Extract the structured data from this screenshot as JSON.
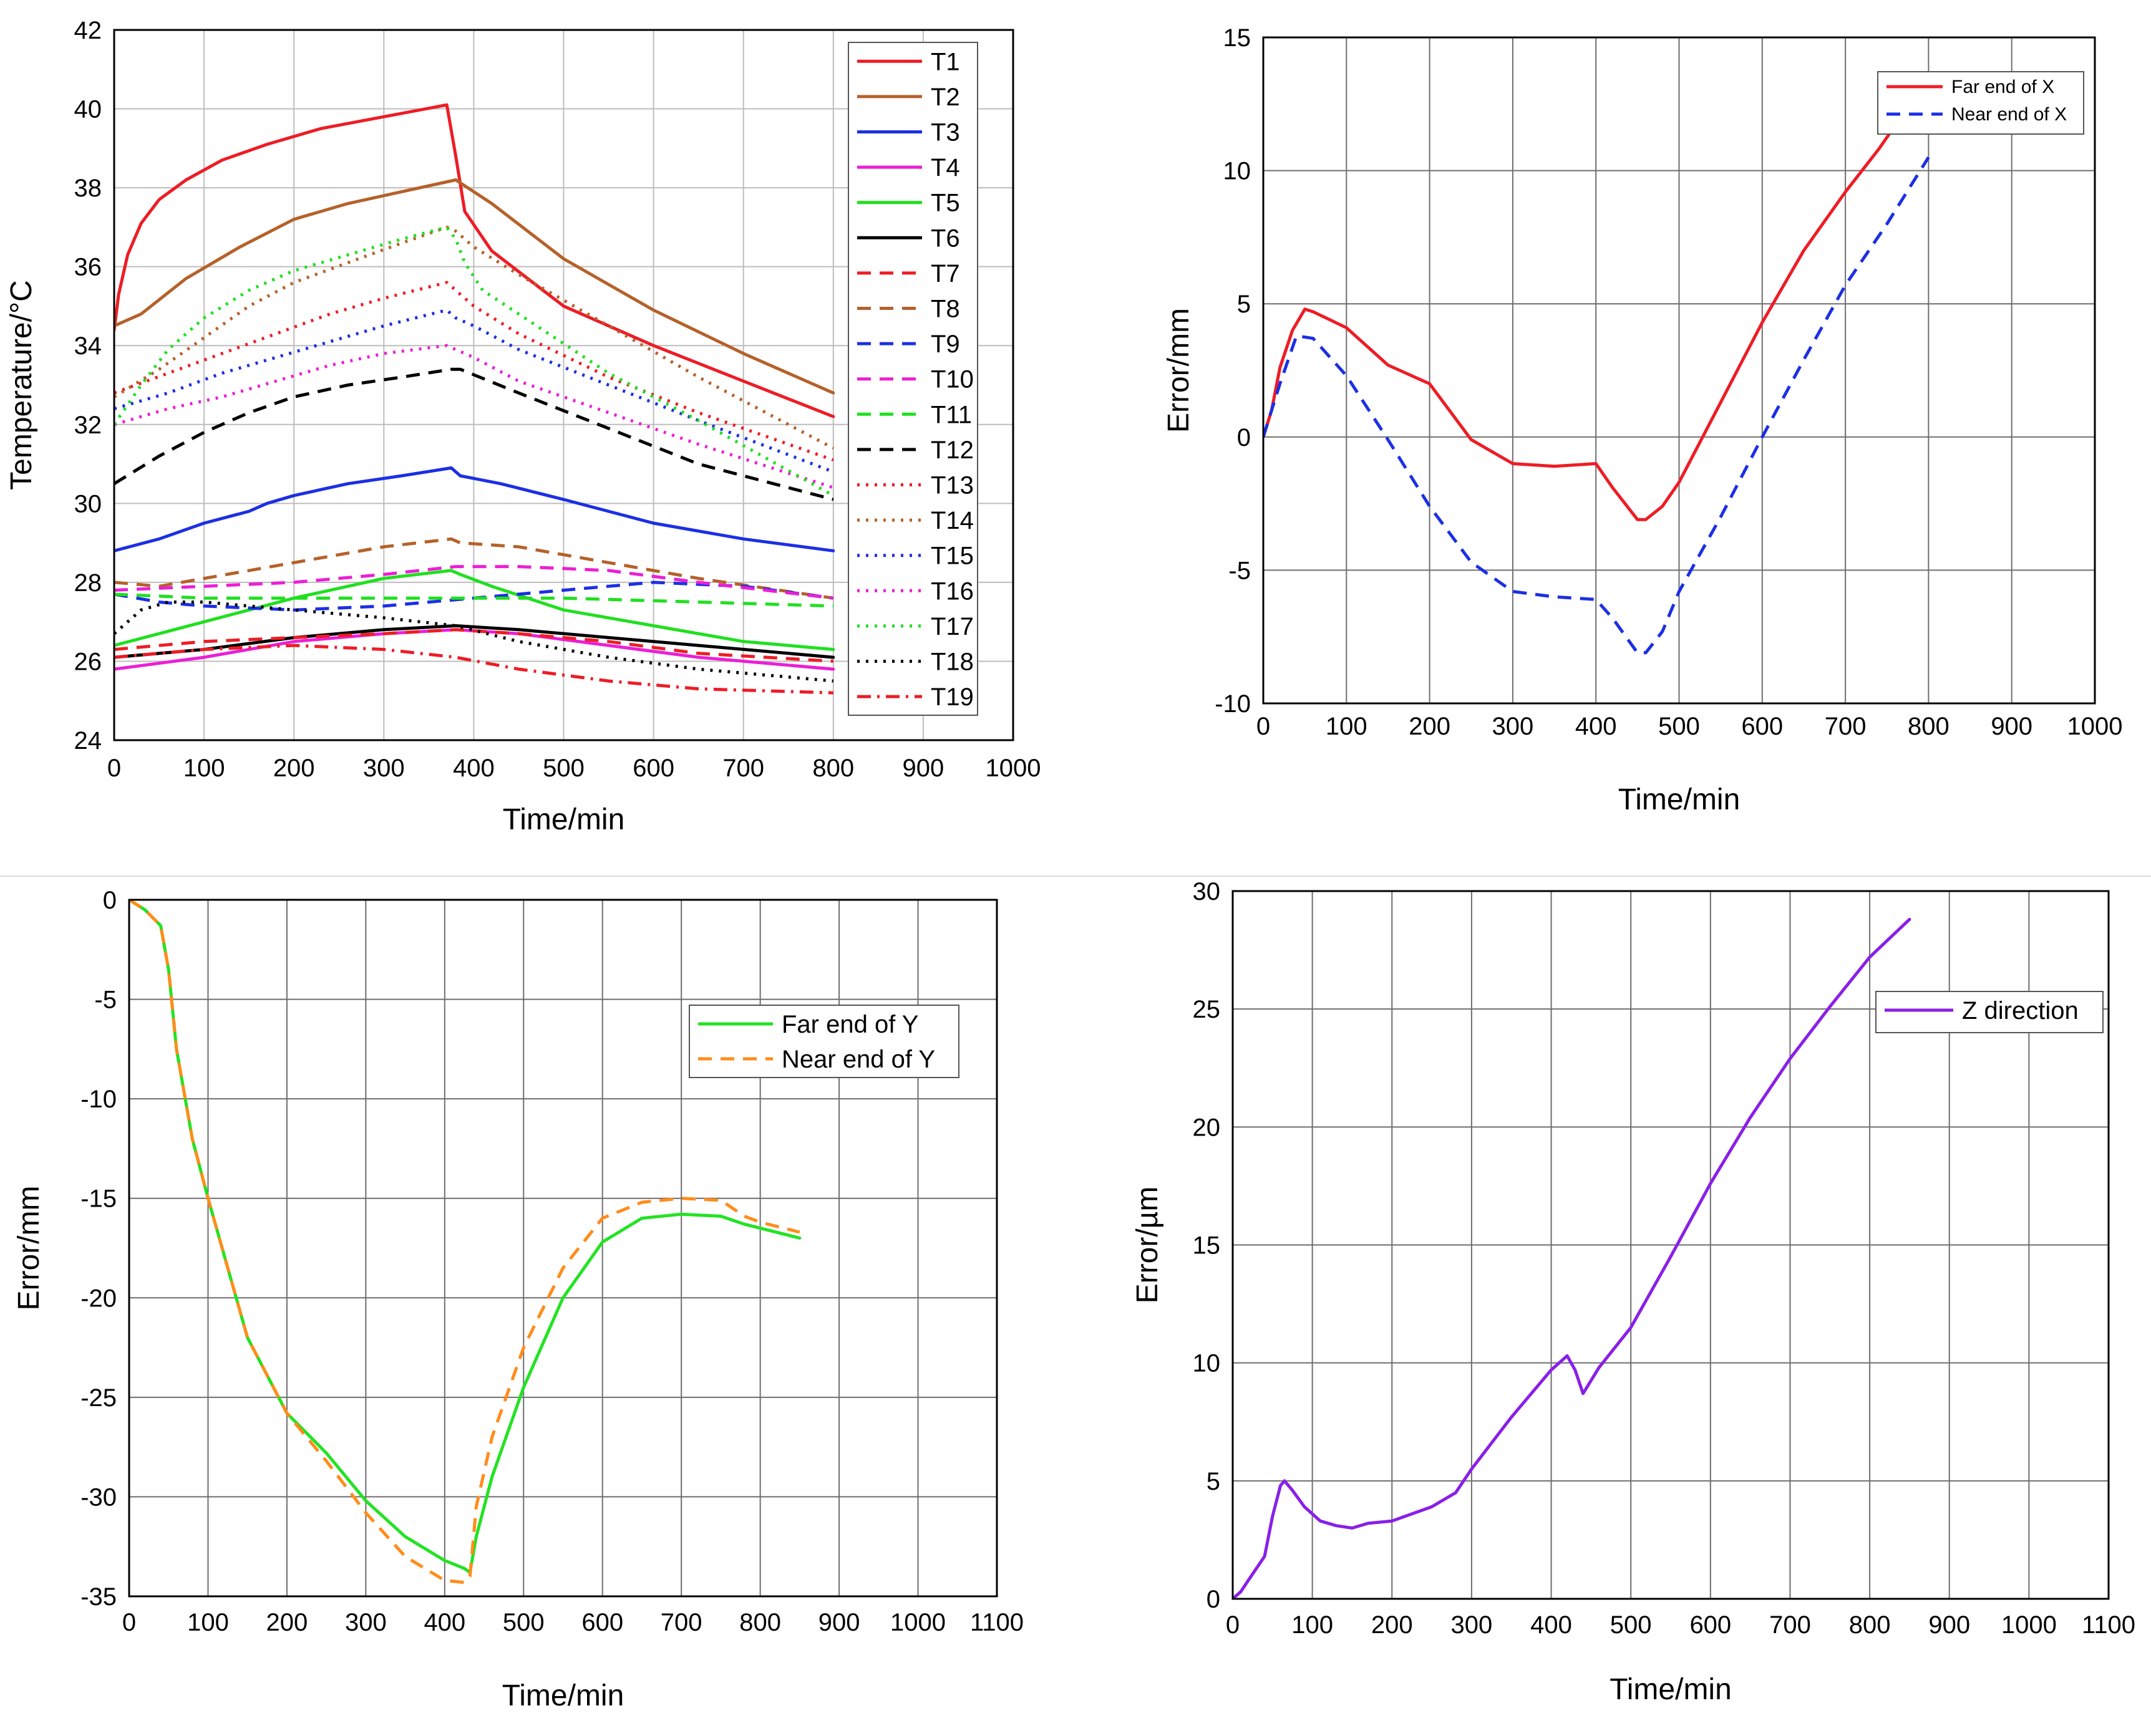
{
  "chart_data": [
    {
      "type": "line",
      "panel": "top-left",
      "xlabel": "Time/min",
      "ylabel": "Temperature/°C",
      "xlim": [
        0,
        1000
      ],
      "ylim": [
        24,
        42
      ],
      "xticks": [
        0,
        100,
        200,
        300,
        400,
        500,
        600,
        700,
        800,
        900,
        1000
      ],
      "yticks": [
        24,
        26,
        28,
        30,
        32,
        34,
        36,
        38,
        40,
        42
      ],
      "grid": true,
      "legend_position": "top-right",
      "series": [
        {
          "name": "T1",
          "color": "#ee1c25",
          "dash": "solid",
          "x": [
            0,
            5,
            15,
            30,
            50,
            80,
            120,
            170,
            230,
            300,
            370,
            380,
            390,
            420,
            500,
            600,
            700,
            800
          ],
          "y": [
            34.4,
            35.3,
            36.3,
            37.1,
            37.7,
            38.2,
            38.7,
            39.1,
            39.5,
            39.8,
            40.1,
            38.8,
            37.4,
            36.4,
            35.0,
            34.0,
            33.1,
            32.2
          ]
        },
        {
          "name": "T2",
          "color": "#b5612a",
          "dash": "solid",
          "x": [
            0,
            30,
            80,
            140,
            200,
            260,
            320,
            380,
            420,
            500,
            600,
            700,
            800
          ],
          "y": [
            34.5,
            34.8,
            35.7,
            36.5,
            37.2,
            37.6,
            37.9,
            38.2,
            37.6,
            36.2,
            34.9,
            33.8,
            32.8
          ]
        },
        {
          "name": "T3",
          "color": "#1c2fe5",
          "dash": "solid",
          "x": [
            0,
            50,
            100,
            150,
            170,
            200,
            260,
            320,
            375,
            385,
            430,
            500,
            600,
            700,
            800
          ],
          "y": [
            28.8,
            29.1,
            29.5,
            29.8,
            30.0,
            30.2,
            30.5,
            30.7,
            30.9,
            30.7,
            30.5,
            30.1,
            29.5,
            29.1,
            28.8
          ]
        },
        {
          "name": "T4",
          "color": "#ec1ed6",
          "dash": "solid",
          "x": [
            0,
            100,
            200,
            300,
            380,
            450,
            550,
            650,
            800
          ],
          "y": [
            25.8,
            26.1,
            26.5,
            26.7,
            26.8,
            26.7,
            26.4,
            26.1,
            25.8
          ]
        },
        {
          "name": "T5",
          "color": "#1fe01f",
          "dash": "solid",
          "x": [
            0,
            100,
            200,
            300,
            375,
            385,
            420,
            500,
            600,
            700,
            800
          ],
          "y": [
            26.4,
            27.0,
            27.6,
            28.1,
            28.3,
            28.2,
            27.9,
            27.3,
            26.9,
            26.5,
            26.3
          ]
        },
        {
          "name": "T6",
          "color": "#000000",
          "dash": "solid",
          "x": [
            0,
            100,
            200,
            300,
            380,
            450,
            550,
            650,
            800
          ],
          "y": [
            26.1,
            26.3,
            26.6,
            26.8,
            26.9,
            26.8,
            26.6,
            26.4,
            26.1
          ]
        },
        {
          "name": "T7",
          "color": "#ee1c25",
          "dash": "dash",
          "x": [
            0,
            100,
            200,
            300,
            380,
            450,
            550,
            650,
            800
          ],
          "y": [
            26.3,
            26.5,
            26.6,
            26.7,
            26.8,
            26.7,
            26.5,
            26.2,
            26.0
          ]
        },
        {
          "name": "T8",
          "color": "#b5612a",
          "dash": "dash",
          "x": [
            0,
            50,
            100,
            200,
            300,
            375,
            385,
            450,
            550,
            650,
            800
          ],
          "y": [
            28.0,
            27.9,
            28.1,
            28.5,
            28.9,
            29.1,
            29.0,
            28.9,
            28.5,
            28.1,
            27.6
          ]
        },
        {
          "name": "T9",
          "color": "#1c2fe5",
          "dash": "dash",
          "x": [
            0,
            50,
            100,
            200,
            300,
            400,
            500,
            600,
            700,
            800
          ],
          "y": [
            27.7,
            27.5,
            27.4,
            27.3,
            27.4,
            27.6,
            27.8,
            28.0,
            27.9,
            27.6
          ]
        },
        {
          "name": "T10",
          "color": "#ec1ed6",
          "dash": "dash",
          "x": [
            0,
            100,
            200,
            300,
            380,
            450,
            550,
            650,
            800
          ],
          "y": [
            27.8,
            27.9,
            28.0,
            28.2,
            28.4,
            28.4,
            28.3,
            28.0,
            27.6
          ]
        },
        {
          "name": "T11",
          "color": "#1fe01f",
          "dash": "dash",
          "x": [
            0,
            100,
            200,
            300,
            380,
            500,
            650,
            800
          ],
          "y": [
            27.7,
            27.6,
            27.6,
            27.6,
            27.6,
            27.6,
            27.5,
            27.4
          ]
        },
        {
          "name": "T12",
          "color": "#000000",
          "dash": "dash",
          "x": [
            0,
            50,
            100,
            150,
            200,
            260,
            320,
            375,
            385,
            450,
            550,
            650,
            800
          ],
          "y": [
            30.5,
            31.2,
            31.8,
            32.3,
            32.7,
            33.0,
            33.2,
            33.4,
            33.4,
            32.8,
            31.9,
            31.0,
            30.1
          ]
        },
        {
          "name": "T13",
          "color": "#ee1c25",
          "dash": "dot",
          "x": [
            0,
            60,
            120,
            180,
            240,
            300,
            370,
            380,
            400,
            450,
            550,
            650,
            800
          ],
          "y": [
            32.8,
            33.3,
            33.8,
            34.3,
            34.8,
            35.2,
            35.6,
            35.4,
            35.0,
            34.3,
            33.2,
            32.3,
            31.1
          ]
        },
        {
          "name": "T14",
          "color": "#b5612a",
          "dash": "dot",
          "x": [
            0,
            50,
            100,
            150,
            200,
            260,
            320,
            370,
            380,
            400,
            450,
            550,
            650,
            800
          ],
          "y": [
            32.7,
            33.4,
            34.2,
            35.0,
            35.6,
            36.1,
            36.6,
            37.0,
            36.9,
            36.5,
            35.8,
            34.5,
            33.2,
            31.4
          ]
        },
        {
          "name": "T15",
          "color": "#1c2fe5",
          "dash": "dot",
          "x": [
            0,
            60,
            120,
            180,
            240,
            300,
            370,
            380,
            400,
            450,
            550,
            650,
            800
          ],
          "y": [
            32.4,
            32.8,
            33.3,
            33.7,
            34.1,
            34.5,
            34.9,
            34.7,
            34.5,
            33.9,
            33.0,
            32.1,
            30.8
          ]
        },
        {
          "name": "T16",
          "color": "#ec1ed6",
          "dash": "dot",
          "x": [
            0,
            60,
            120,
            180,
            240,
            300,
            370,
            380,
            400,
            450,
            550,
            650,
            800
          ],
          "y": [
            32.0,
            32.4,
            32.7,
            33.1,
            33.5,
            33.8,
            34.0,
            33.9,
            33.7,
            33.1,
            32.3,
            31.5,
            30.4
          ]
        },
        {
          "name": "T17",
          "color": "#1fe01f",
          "dash": "dot",
          "x": [
            0,
            30,
            60,
            100,
            150,
            200,
            260,
            320,
            370,
            380,
            390,
            410,
            450,
            550,
            650,
            800
          ],
          "y": [
            32.0,
            33.0,
            33.9,
            34.7,
            35.4,
            35.9,
            36.3,
            36.7,
            37.0,
            36.7,
            36.1,
            35.4,
            34.8,
            33.3,
            32.1,
            30.2
          ]
        },
        {
          "name": "T18",
          "color": "#000000",
          "dash": "dot",
          "x": [
            0,
            30,
            60,
            100,
            200,
            300,
            380,
            450,
            550,
            650,
            800
          ],
          "y": [
            26.7,
            27.3,
            27.5,
            27.5,
            27.3,
            27.1,
            26.9,
            26.5,
            26.1,
            25.8,
            25.5
          ]
        },
        {
          "name": "T19",
          "color": "#ee1c25",
          "dash": "dashdot",
          "x": [
            0,
            100,
            200,
            300,
            380,
            450,
            550,
            650,
            800
          ],
          "y": [
            26.1,
            26.3,
            26.4,
            26.3,
            26.1,
            25.8,
            25.5,
            25.3,
            25.2
          ]
        }
      ]
    },
    {
      "type": "line",
      "panel": "top-right",
      "xlabel": "Time/min",
      "ylabel": "Error/mm",
      "xlim": [
        0,
        1000
      ],
      "ylim": [
        -10,
        15
      ],
      "xticks": [
        0,
        100,
        200,
        300,
        400,
        500,
        600,
        700,
        800,
        900,
        1000
      ],
      "yticks": [
        -10,
        -5,
        0,
        5,
        10,
        15
      ],
      "grid": true,
      "legend_position": "top-right",
      "series": [
        {
          "name": "Far end of X",
          "color": "#ee1c25",
          "dash": "solid",
          "x": [
            0,
            10,
            20,
            35,
            50,
            60,
            80,
            100,
            150,
            200,
            250,
            300,
            350,
            400,
            420,
            450,
            460,
            480,
            500,
            550,
            600,
            650,
            700,
            740,
            760
          ],
          "y": [
            0,
            1.0,
            2.6,
            4.0,
            4.8,
            4.7,
            4.4,
            4.1,
            2.7,
            2.0,
            -0.1,
            -1.0,
            -1.1,
            -1.0,
            -1.9,
            -3.1,
            -3.1,
            -2.6,
            -1.7,
            1.3,
            4.3,
            7.0,
            9.2,
            10.8,
            11.7
          ]
        },
        {
          "name": "Near end of X",
          "color": "#1c2fe5",
          "dash": "dash",
          "x": [
            0,
            20,
            40,
            60,
            100,
            150,
            200,
            250,
            300,
            350,
            400,
            420,
            450,
            460,
            480,
            500,
            550,
            600,
            650,
            700,
            750,
            800
          ],
          "y": [
            0,
            2.0,
            3.8,
            3.7,
            2.3,
            -0.1,
            -2.6,
            -4.7,
            -5.8,
            -6.0,
            -6.1,
            -6.8,
            -8.1,
            -8.1,
            -7.3,
            -5.8,
            -3.0,
            0.0,
            2.9,
            5.7,
            8.0,
            10.5
          ]
        }
      ]
    },
    {
      "type": "line",
      "panel": "bottom-left",
      "xlabel": "Time/min",
      "ylabel": "Error/mm",
      "xlim": [
        0,
        1100
      ],
      "ylim": [
        -35,
        0
      ],
      "xticks": [
        0,
        100,
        200,
        300,
        400,
        500,
        600,
        700,
        800,
        900,
        1000,
        1100
      ],
      "yticks": [
        -35,
        -30,
        -25,
        -20,
        -15,
        -10,
        -5,
        0
      ],
      "grid": true,
      "legend_position": "right",
      "series": [
        {
          "name": "Far end of Y",
          "color": "#22e322",
          "dash": "solid",
          "x": [
            0,
            20,
            40,
            50,
            60,
            80,
            100,
            150,
            200,
            250,
            300,
            350,
            400,
            425,
            432,
            440,
            460,
            500,
            550,
            600,
            650,
            700,
            750,
            780,
            800,
            850
          ],
          "y": [
            0,
            -0.5,
            -1.3,
            -3.5,
            -7.5,
            -12.0,
            -15.0,
            -22.0,
            -25.8,
            -27.8,
            -30.2,
            -32.0,
            -33.2,
            -33.6,
            -33.8,
            -32.0,
            -29.0,
            -24.5,
            -20.0,
            -17.2,
            -16.0,
            -15.8,
            -15.9,
            -16.3,
            -16.5,
            -17.0
          ]
        },
        {
          "name": "Near end of Y",
          "color": "#ff8c1a",
          "dash": "dash",
          "x": [
            0,
            20,
            40,
            50,
            60,
            80,
            100,
            150,
            200,
            250,
            300,
            350,
            400,
            425,
            432,
            440,
            460,
            500,
            550,
            600,
            650,
            700,
            750,
            780,
            800,
            850
          ],
          "y": [
            0,
            -0.5,
            -1.3,
            -3.5,
            -7.5,
            -12.0,
            -15.0,
            -22.0,
            -25.8,
            -28.2,
            -30.8,
            -33.0,
            -34.2,
            -34.3,
            -34.0,
            -30.5,
            -27.0,
            -22.5,
            -18.5,
            -16.0,
            -15.2,
            -15.0,
            -15.1,
            -15.9,
            -16.2,
            -16.7
          ]
        }
      ]
    },
    {
      "type": "line",
      "panel": "bottom-right",
      "xlabel": "Time/min",
      "ylabel": "Error/µm",
      "xlim": [
        0,
        1100
      ],
      "ylim": [
        0,
        30
      ],
      "xticks": [
        0,
        100,
        200,
        300,
        400,
        500,
        600,
        700,
        800,
        900,
        1000,
        1100
      ],
      "yticks": [
        0,
        5,
        10,
        15,
        20,
        25,
        30
      ],
      "grid": true,
      "legend_position": "top-right",
      "series": [
        {
          "name": "Z direction",
          "color": "#8a1fe8",
          "dash": "solid",
          "x": [
            0,
            10,
            20,
            40,
            50,
            60,
            65,
            75,
            90,
            110,
            130,
            150,
            170,
            200,
            250,
            280,
            300,
            350,
            400,
            420,
            430,
            440,
            460,
            500,
            550,
            600,
            650,
            700,
            750,
            800,
            850
          ],
          "y": [
            0,
            0.3,
            0.8,
            1.8,
            3.5,
            4.8,
            5.0,
            4.6,
            3.9,
            3.3,
            3.1,
            3.0,
            3.2,
            3.3,
            3.9,
            4.5,
            5.5,
            7.7,
            9.7,
            10.3,
            9.7,
            8.7,
            9.8,
            11.5,
            14.5,
            17.6,
            20.4,
            22.9,
            25.1,
            27.2,
            28.8
          ]
        }
      ]
    }
  ]
}
